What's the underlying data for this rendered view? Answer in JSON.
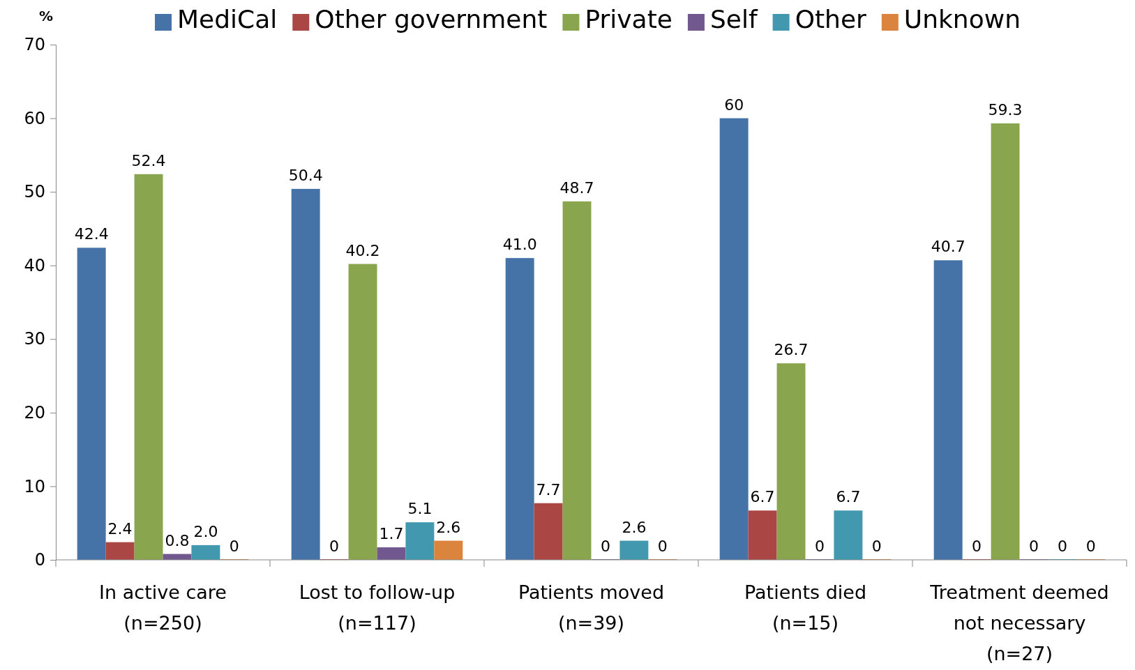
{
  "chart_data": {
    "type": "bar",
    "ylabel": "%",
    "categories": [
      "In active care\n(n=250)",
      "Lost to follow-up\n(n=117)",
      "Patients moved\n(n=39)",
      "Patients died\n(n=15)",
      "Treatment deemed\nnot necessary\n(n=27)"
    ],
    "series": [
      {
        "name": "MediCal",
        "color": "#4572a7",
        "values": [
          42.4,
          50.4,
          41.0,
          60,
          40.7
        ],
        "value_labels": [
          "42.4",
          "50.4",
          "41.0",
          "60",
          "40.7"
        ]
      },
      {
        "name": "Other government",
        "color": "#aa4643",
        "values": [
          2.4,
          0,
          7.7,
          6.7,
          0
        ],
        "value_labels": [
          "2.4",
          "0",
          "7.7",
          "6.7",
          "0"
        ]
      },
      {
        "name": "Private",
        "color": "#89a54e",
        "values": [
          52.4,
          40.2,
          48.7,
          26.7,
          59.3
        ],
        "value_labels": [
          "52.4",
          "40.2",
          "48.7",
          "26.7",
          "59.3"
        ]
      },
      {
        "name": "Self",
        "color": "#71588f",
        "values": [
          0.8,
          1.7,
          0,
          0,
          0
        ],
        "value_labels": [
          "0.8",
          "1.7",
          "0",
          "0",
          "0"
        ]
      },
      {
        "name": "Other",
        "color": "#4198af",
        "values": [
          2.0,
          5.1,
          2.6,
          6.7,
          0
        ],
        "value_labels": [
          "2.0",
          "5.1",
          "2.6",
          "6.7",
          "0"
        ]
      },
      {
        "name": "Unknown",
        "color": "#db843d",
        "values": [
          0,
          2.6,
          0,
          0,
          0
        ],
        "value_labels": [
          "0",
          "2.6",
          "0",
          "0",
          "0"
        ]
      }
    ],
    "ylim": [
      0,
      70
    ],
    "yticks": [
      0,
      10,
      20,
      30,
      40,
      50,
      60,
      70
    ],
    "grid": false,
    "legend": "top"
  }
}
